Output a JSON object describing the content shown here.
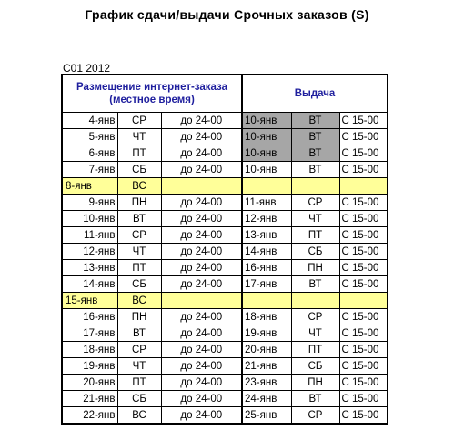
{
  "title": "График сдачи/выдачи Срочных заказов (S)",
  "period": "C01  2012",
  "header": {
    "placement_line1": "Размещение интернет-заказа",
    "placement_line2": "(местное время)",
    "issue": "Выдача"
  },
  "colors": {
    "holiday_row": "#ffff99",
    "gray_cell": "#a6a6a6",
    "header_text": "#1f1f9e"
  },
  "rows": [
    {
      "date": "4-янв",
      "dow": "СР",
      "time": "до 24-00",
      "issue_date": "10-янв",
      "issue_dow": "ВТ",
      "issue_time": "С 15-00",
      "gray": true
    },
    {
      "date": "5-янв",
      "dow": "ЧТ",
      "time": "до 24-00",
      "issue_date": "10-янв",
      "issue_dow": "ВТ",
      "issue_time": "С 15-00",
      "gray": true
    },
    {
      "date": "6-янв",
      "dow": "ПТ",
      "time": "до 24-00",
      "issue_date": "10-янв",
      "issue_dow": "ВТ",
      "issue_time": "С 15-00",
      "gray": true
    },
    {
      "date": "7-янв",
      "dow": "СБ",
      "time": "до 24-00",
      "issue_date": "10-янв",
      "issue_dow": "ВТ",
      "issue_time": "С 15-00",
      "gray": false
    },
    {
      "date": "8-янв",
      "dow": "ВС",
      "time": "",
      "issue_date": "",
      "issue_dow": "",
      "issue_time": "",
      "holiday": true
    },
    {
      "date": "9-янв",
      "dow": "ПН",
      "time": "до 24-00",
      "issue_date": "11-янв",
      "issue_dow": "СР",
      "issue_time": "С 15-00"
    },
    {
      "date": "10-янв",
      "dow": "ВТ",
      "time": "до 24-00",
      "issue_date": "12-янв",
      "issue_dow": "ЧТ",
      "issue_time": "С 15-00"
    },
    {
      "date": "11-янв",
      "dow": "СР",
      "time": "до 24-00",
      "issue_date": "13-янв",
      "issue_dow": "ПТ",
      "issue_time": "С 15-00"
    },
    {
      "date": "12-янв",
      "dow": "ЧТ",
      "time": "до 24-00",
      "issue_date": "14-янв",
      "issue_dow": "СБ",
      "issue_time": "С 15-00"
    },
    {
      "date": "13-янв",
      "dow": "ПТ",
      "time": "до 24-00",
      "issue_date": "16-янв",
      "issue_dow": "ПН",
      "issue_time": "С 15-00"
    },
    {
      "date": "14-янв",
      "dow": "СБ",
      "time": "до 24-00",
      "issue_date": "17-янв",
      "issue_dow": "ВТ",
      "issue_time": "С 15-00"
    },
    {
      "date": "15-янв",
      "dow": "ВС",
      "time": "",
      "issue_date": "",
      "issue_dow": "",
      "issue_time": "",
      "holiday": true
    },
    {
      "date": "16-янв",
      "dow": "ПН",
      "time": "до 24-00",
      "issue_date": "18-янв",
      "issue_dow": "СР",
      "issue_time": "С 15-00"
    },
    {
      "date": "17-янв",
      "dow": "ВТ",
      "time": "до 24-00",
      "issue_date": "19-янв",
      "issue_dow": "ЧТ",
      "issue_time": "С 15-00"
    },
    {
      "date": "18-янв",
      "dow": "СР",
      "time": "до 24-00",
      "issue_date": "20-янв",
      "issue_dow": "ПТ",
      "issue_time": "С 15-00"
    },
    {
      "date": "19-янв",
      "dow": "ЧТ",
      "time": "до 24-00",
      "issue_date": "21-янв",
      "issue_dow": "СБ",
      "issue_time": "С 15-00"
    },
    {
      "date": "20-янв",
      "dow": "ПТ",
      "time": "до 24-00",
      "issue_date": "23-янв",
      "issue_dow": "ПН",
      "issue_time": "С 15-00"
    },
    {
      "date": "21-янв",
      "dow": "СБ",
      "time": "до 24-00",
      "issue_date": "24-янв",
      "issue_dow": "ВТ",
      "issue_time": "С 15-00"
    },
    {
      "date": "22-янв",
      "dow": "ВС",
      "time": "до 24-00",
      "issue_date": "25-янв",
      "issue_dow": "СР",
      "issue_time": "С 15-00"
    }
  ]
}
